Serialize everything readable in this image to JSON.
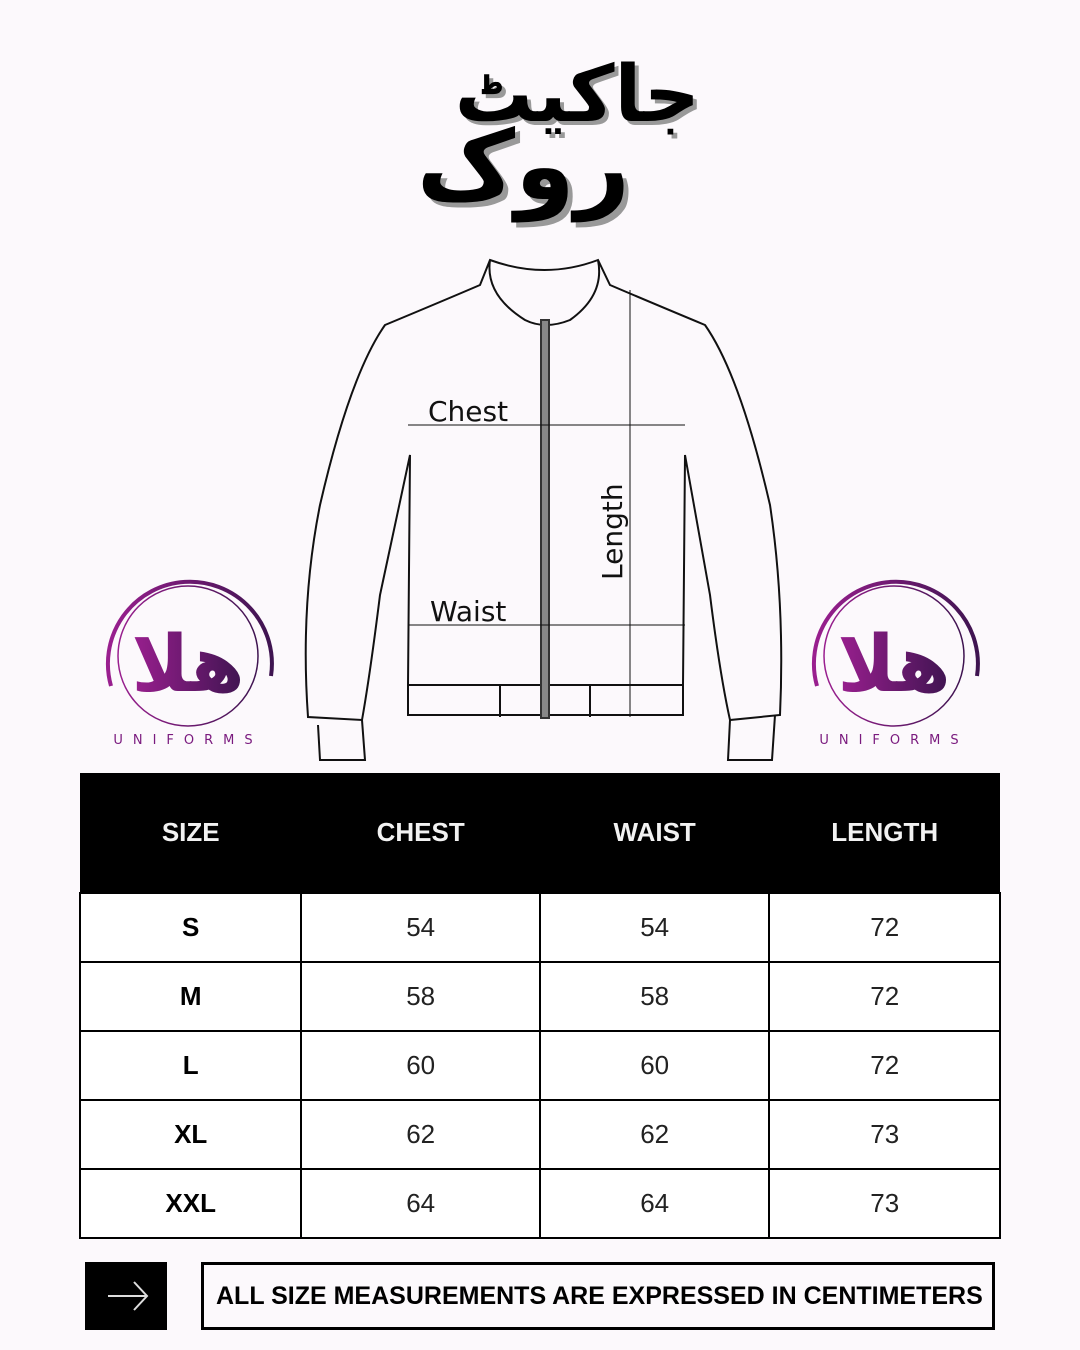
{
  "title": {
    "line1": "جاکیٹ",
    "line2": "روک"
  },
  "diagram": {
    "chest": "Chest",
    "waist": "Waist",
    "length": "Length"
  },
  "logo": {
    "mark": "ھلا",
    "text": "UNIFORMS",
    "color": "#7a1a7e"
  },
  "table": {
    "headers": [
      "SIZE",
      "CHEST",
      "WAIST",
      "LENGTH"
    ],
    "rows": [
      [
        "S",
        "54",
        "54",
        "72"
      ],
      [
        "M",
        "58",
        "58",
        "72"
      ],
      [
        "L",
        "60",
        "60",
        "72"
      ],
      [
        "XL",
        "62",
        "62",
        "73"
      ],
      [
        "XXL",
        "64",
        "64",
        "73"
      ]
    ]
  },
  "footer": {
    "icon": "arrow-right-icon",
    "note": "ALL SIZE MEASUREMENTS ARE EXPRESSED IN CENTIMETERS"
  }
}
